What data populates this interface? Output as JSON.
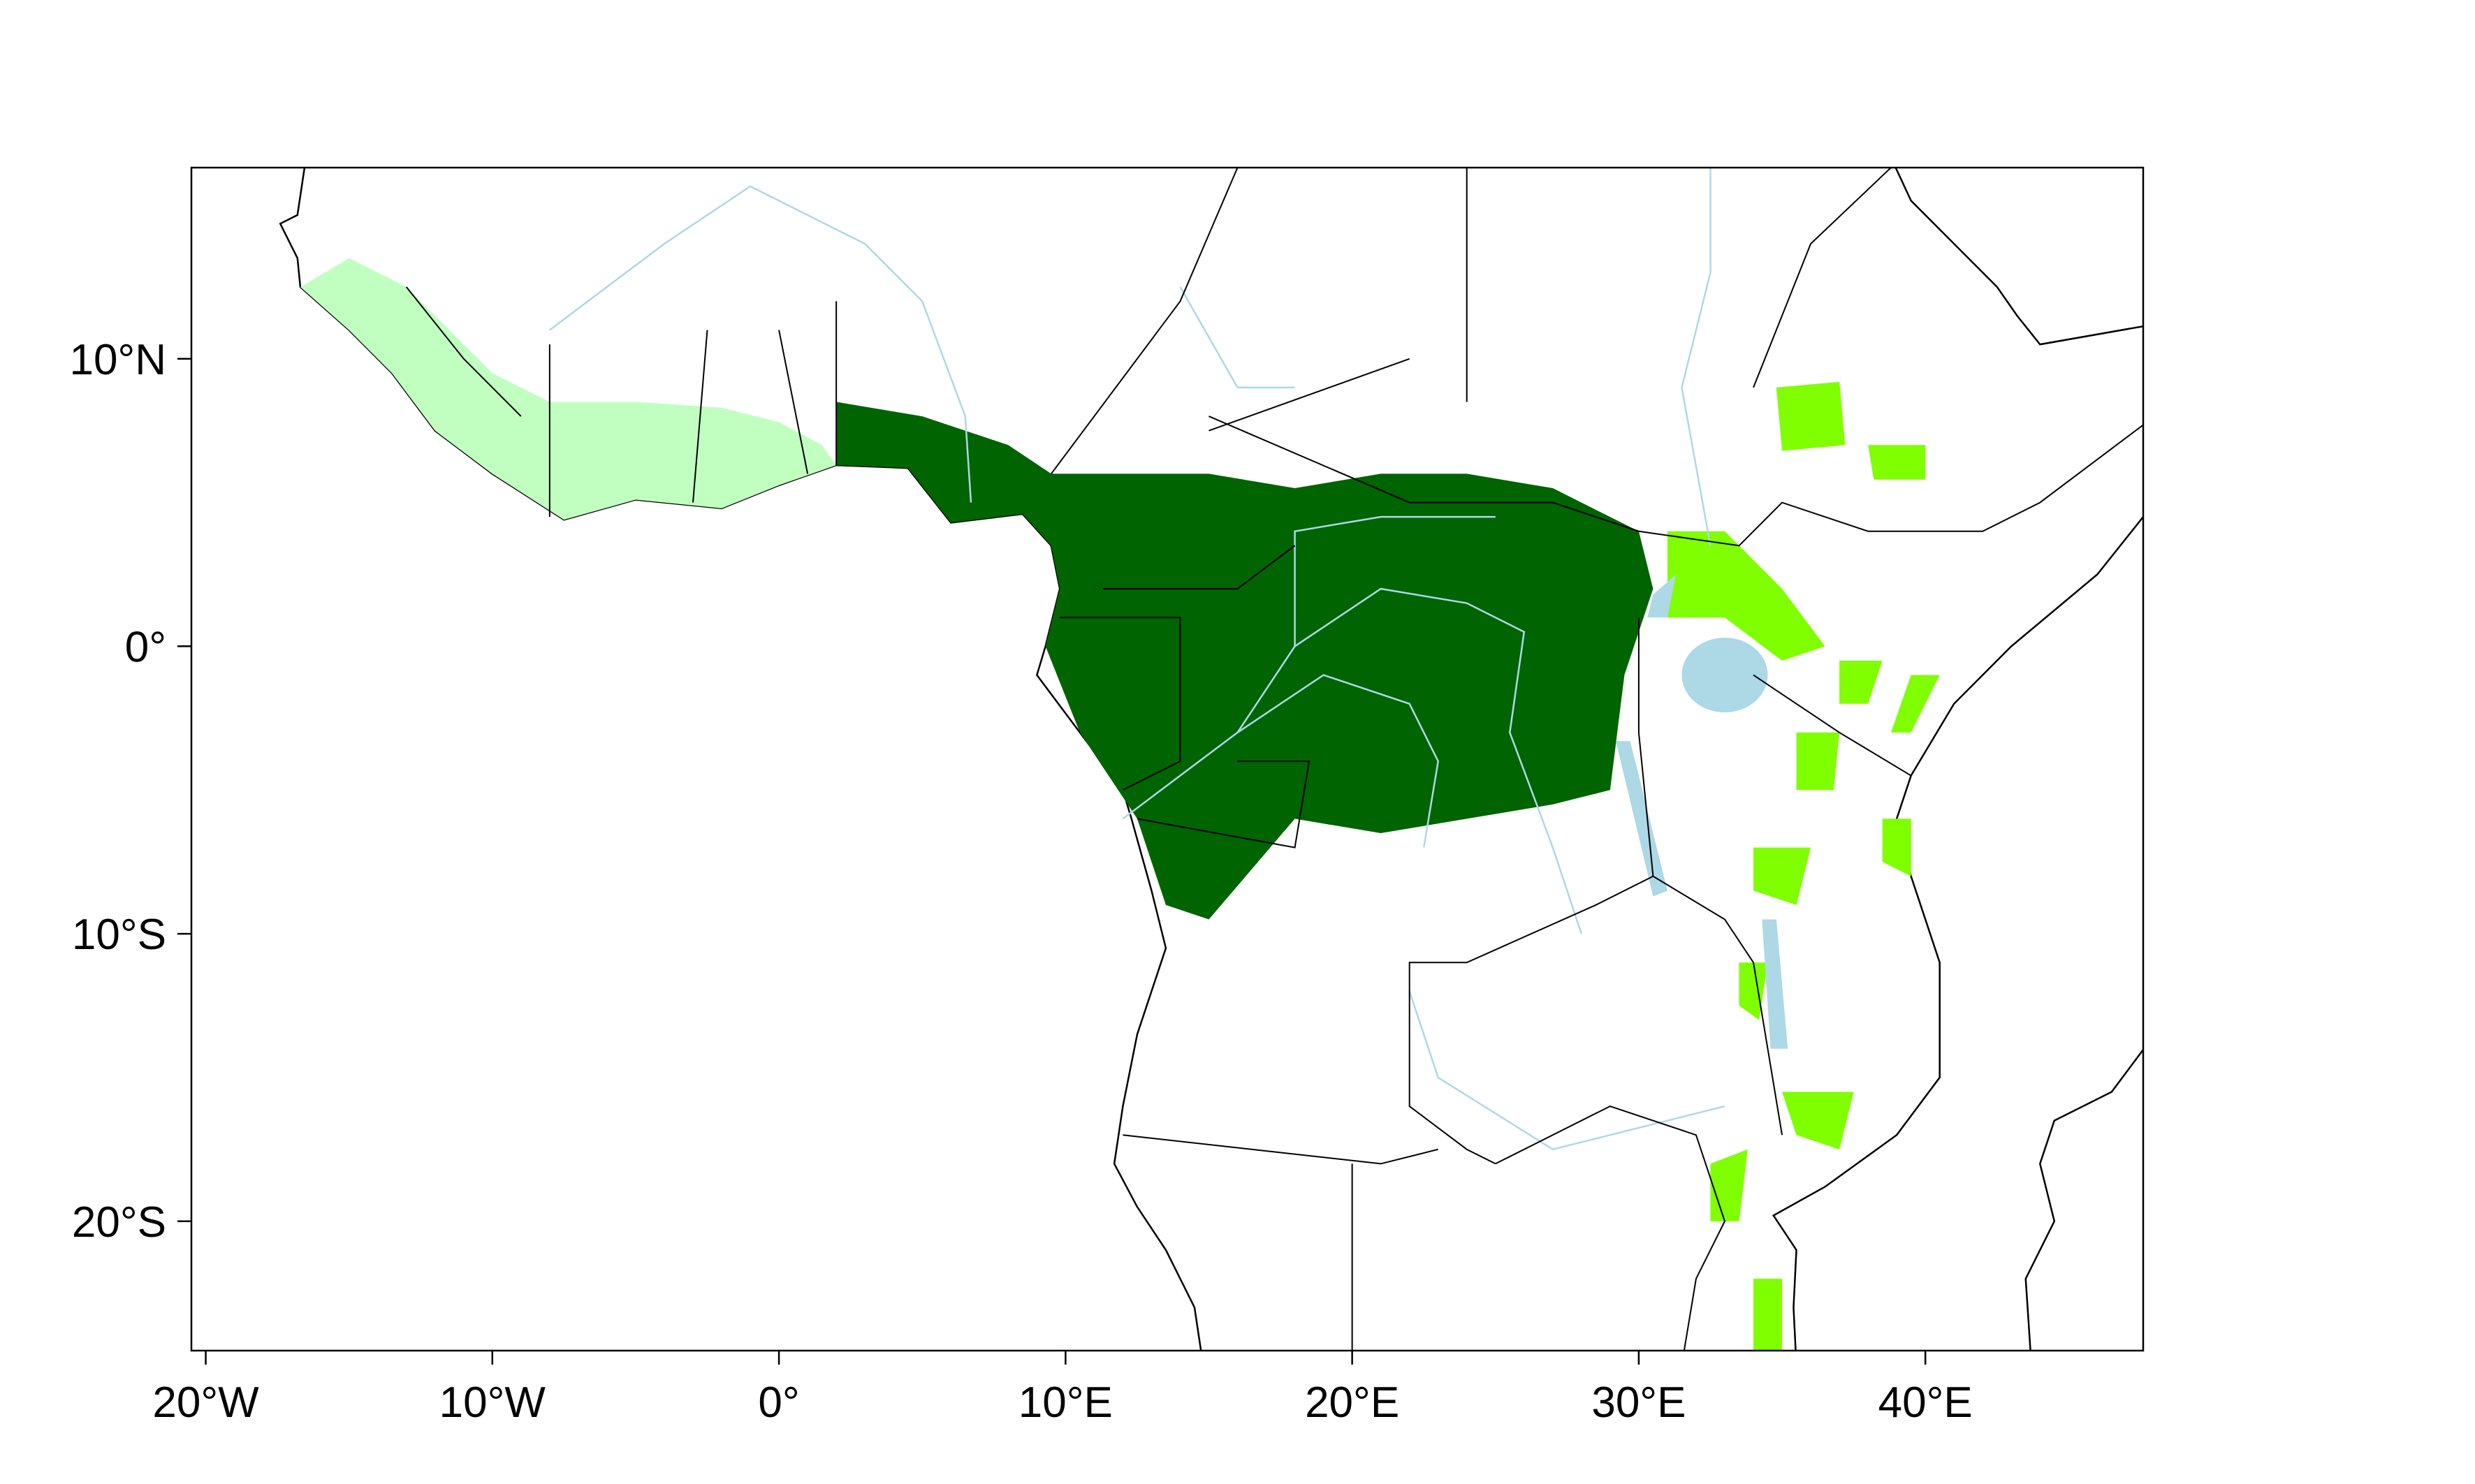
{
  "map": {
    "xlim": [
      -20.5,
      47.6
    ],
    "ylim": [
      -24.5,
      16.65
    ],
    "xticks": [
      {
        "value": -20,
        "label": "20°W"
      },
      {
        "value": -10,
        "label": "10°W"
      },
      {
        "value": 0,
        "label": "0°"
      },
      {
        "value": 10,
        "label": "10°E"
      },
      {
        "value": 20,
        "label": "20°E"
      },
      {
        "value": 30,
        "label": "30°E"
      },
      {
        "value": 40,
        "label": "40°E"
      }
    ],
    "yticks": [
      {
        "value": 10,
        "label": "10°N"
      },
      {
        "value": 0,
        "label": "0°"
      },
      {
        "value": -10,
        "label": "10°S"
      },
      {
        "value": -20,
        "label": "20°S"
      }
    ]
  }
}
